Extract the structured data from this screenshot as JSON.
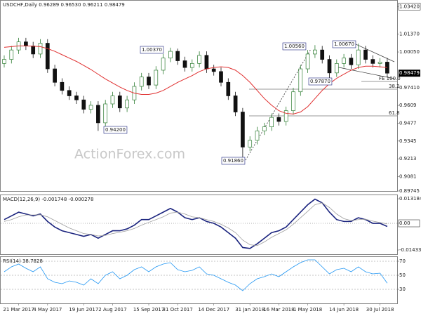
{
  "chart_data": [
    {
      "type": "candlestick",
      "title": "USDCHF,Daily  0.96289 0.96530 0.96211 0.98479",
      "watermark": "ActionForex.com",
      "categories": [
        null,
        null,
        "21 Mar 2017",
        null,
        null,
        null,
        "4 May 2017",
        null,
        null,
        null,
        null,
        "19 Jun 2017",
        null,
        null,
        null,
        "2 Aug 2017",
        null,
        null,
        null,
        null,
        "15 Sep 2017",
        null,
        null,
        null,
        "31 Oct 2017",
        null,
        null,
        null,
        null,
        "14 Dec 2017",
        null,
        null,
        null,
        null,
        "31 Jan 2018",
        null,
        null,
        null,
        "16 Mar 2018",
        null,
        null,
        null,
        "1 May 2018",
        null,
        null,
        null,
        null,
        "14 Jun 2018",
        null,
        null,
        null,
        null,
        "30 Jul 2018",
        null
      ],
      "open": [
        0.992,
        0.995,
        1.002,
        1.008,
        1.005,
        0.999,
        1.007,
        0.988,
        0.978,
        0.972,
        0.968,
        0.965,
        0.958,
        0.961,
        0.948,
        0.962,
        0.968,
        0.959,
        0.965,
        0.975,
        0.982,
        0.976,
        0.987,
        0.996,
        1.001,
        0.994,
        0.989,
        0.992,
        0.998,
        0.988,
        0.986,
        0.978,
        0.968,
        0.956,
        0.93,
        0.935,
        0.942,
        0.945,
        0.952,
        0.949,
        0.957,
        0.971,
        0.988,
        0.999,
        1.002,
        0.995,
        0.985,
        0.992,
        0.996,
        0.991,
        1.002,
        0.995,
        0.992,
        0.993
      ],
      "high": [
        0.998,
        1.005,
        1.011,
        1.011,
        1.008,
        1.01,
        1.01,
        0.991,
        0.981,
        0.975,
        0.971,
        0.968,
        0.964,
        0.964,
        0.965,
        0.971,
        0.971,
        0.968,
        0.978,
        0.985,
        0.985,
        0.99,
        0.999,
        1.0037,
        1.003,
        0.997,
        0.995,
        1.001,
        1.001,
        0.991,
        0.989,
        0.981,
        0.971,
        0.959,
        0.938,
        0.945,
        0.948,
        0.955,
        0.955,
        0.96,
        0.974,
        0.991,
        1.002,
        1.0056,
        1.005,
        0.998,
        0.995,
        0.999,
        0.999,
        1.0067,
        1.005,
        0.998,
        0.996,
        0.996
      ],
      "low": [
        0.989,
        0.992,
        0.999,
        1.002,
        0.996,
        0.996,
        0.985,
        0.975,
        0.969,
        0.965,
        0.962,
        0.955,
        0.955,
        0.942,
        0.945,
        0.959,
        0.956,
        0.956,
        0.962,
        0.972,
        0.973,
        0.973,
        0.984,
        0.993,
        0.991,
        0.986,
        0.986,
        0.989,
        0.985,
        0.983,
        0.975,
        0.965,
        0.953,
        0.9186,
        0.927,
        0.932,
        0.939,
        0.942,
        0.946,
        0.946,
        0.954,
        0.968,
        0.985,
        0.996,
        0.992,
        0.9787,
        0.982,
        0.989,
        0.988,
        0.988,
        0.992,
        0.989,
        0.989,
        0.9821
      ],
      "close": [
        0.995,
        1.002,
        1.008,
        1.005,
        0.999,
        1.007,
        0.988,
        0.978,
        0.972,
        0.968,
        0.965,
        0.958,
        0.961,
        0.948,
        0.962,
        0.968,
        0.959,
        0.965,
        0.975,
        0.982,
        0.976,
        0.987,
        0.996,
        1.001,
        0.994,
        0.989,
        0.992,
        0.998,
        0.988,
        0.986,
        0.978,
        0.968,
        0.956,
        0.93,
        0.935,
        0.942,
        0.945,
        0.952,
        0.949,
        0.957,
        0.971,
        0.988,
        0.999,
        1.002,
        0.995,
        0.985,
        0.992,
        0.996,
        0.991,
        1.002,
        0.995,
        0.992,
        0.993,
        0.98479
      ],
      "up_color": "#2e7d32",
      "down_color": "#111111",
      "ma": {
        "color": "#e03030",
        "values": [
          1.004,
          1.0045,
          1.005,
          1.005,
          1.0048,
          1.0045,
          1.003,
          1.001,
          0.9985,
          0.996,
          0.9935,
          0.9905,
          0.9875,
          0.984,
          0.9805,
          0.9775,
          0.9745,
          0.972,
          0.97,
          0.969,
          0.969,
          0.97,
          0.972,
          0.975,
          0.978,
          0.9805,
          0.983,
          0.986,
          0.988,
          0.989,
          0.9895,
          0.989,
          0.987,
          0.983,
          0.978,
          0.972,
          0.966,
          0.961,
          0.957,
          0.955,
          0.9545,
          0.956,
          0.96,
          0.966,
          0.972,
          0.977,
          0.981,
          0.984,
          0.987,
          0.989,
          0.99,
          0.99,
          0.9895,
          0.989
        ]
      },
      "ylim": [
        0.89745,
        1.038
      ],
      "yticks": [
        {
          "value": 1.0342,
          "label": "1.03420"
        },
        {
          "value": 1.0137,
          "label": "1.01370"
        },
        {
          "value": 1.0005,
          "label": "1.00050"
        },
        {
          "value": 0.9741,
          "label": "0.97410"
        },
        0.9609,
        0.9477,
        0.9345,
        0.9213,
        0.9081,
        0.89745
      ],
      "annotations": [
        "1.00370",
        "0.94200",
        "0.91860",
        "1.00560",
        "0.97870",
        "1.00670",
        "FE 100.0",
        "38.2",
        "61.8"
      ]
    },
    {
      "type": "line",
      "title": "MACD(12,26,9) -0.001748 -0.000278",
      "series": [
        {
          "color": "#1a237e",
          "values": [
            0.002,
            0.004,
            0.006,
            0.005,
            0.004,
            0.005,
            0.001,
            -0.002,
            -0.004,
            -0.005,
            -0.006,
            -0.007,
            -0.006,
            -0.008,
            -0.006,
            -0.004,
            -0.004,
            -0.003,
            -0.001,
            0.002,
            0.002,
            0.004,
            0.006,
            0.008,
            0.006,
            0.003,
            0.002,
            0.003,
            0.001,
            0.0,
            -0.002,
            -0.005,
            -0.008,
            -0.013,
            -0.0135,
            -0.011,
            -0.008,
            -0.005,
            -0.004,
            -0.002,
            0.002,
            0.006,
            0.01,
            0.013,
            0.011,
            0.006,
            0.002,
            0.001,
            0.001,
            0.003,
            0.002,
            0.0,
            0.0,
            -0.0017
          ]
        },
        {
          "color": "#9e9e9e",
          "values": [
            0.001,
            0.002,
            0.0035,
            0.0045,
            0.0045,
            0.0046,
            0.0035,
            0.0015,
            -0.0005,
            -0.0025,
            -0.004,
            -0.0055,
            -0.006,
            -0.0068,
            -0.0065,
            -0.0055,
            -0.0048,
            -0.004,
            -0.0028,
            -0.001,
            0.0005,
            0.002,
            0.0035,
            0.0055,
            0.006,
            0.005,
            0.0035,
            0.003,
            0.002,
            0.001,
            -0.0005,
            -0.0025,
            -0.005,
            -0.009,
            -0.0115,
            -0.012,
            -0.01,
            -0.0075,
            -0.0055,
            -0.0035,
            -0.0005,
            0.003,
            0.0065,
            0.01,
            0.011,
            0.0085,
            0.005,
            0.0025,
            0.0015,
            0.002,
            0.0022,
            0.0012,
            0.0004,
            -0.0003
          ]
        }
      ],
      "ylim": [
        -0.0166,
        0.0151
      ],
      "yticks": [
        0.013184,
        {
          "value": 0,
          "label": "0.00"
        },
        -0.014339
      ]
    },
    {
      "type": "line",
      "title": "RSI(14) 38.7828",
      "series": [
        {
          "color": "#2196f3",
          "values": [
            55,
            62,
            66,
            60,
            55,
            62,
            45,
            40,
            38,
            42,
            40,
            36,
            45,
            38,
            50,
            55,
            45,
            50,
            58,
            62,
            55,
            62,
            66,
            68,
            58,
            55,
            57,
            62,
            52,
            50,
            45,
            40,
            36,
            28,
            38,
            45,
            48,
            52,
            48,
            55,
            62,
            68,
            72,
            72,
            62,
            52,
            58,
            60,
            55,
            62,
            55,
            52,
            53,
            38.78
          ]
        }
      ],
      "ylim": [
        10,
        76
      ],
      "yticks": [
        30,
        50,
        70
      ]
    }
  ]
}
